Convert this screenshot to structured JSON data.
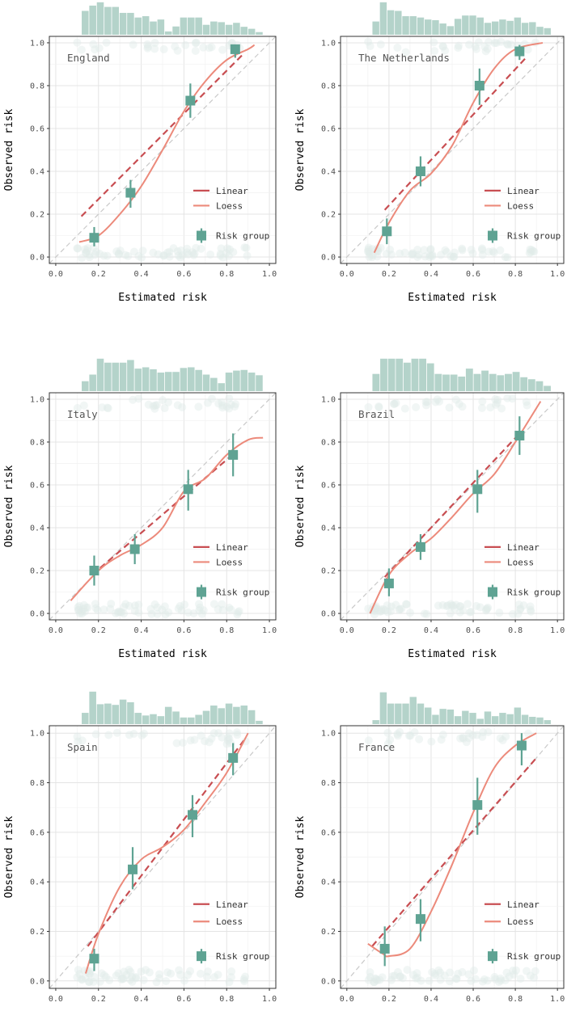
{
  "chart_data": {
    "type": "scatter",
    "x_ticks": [
      "0.0",
      "0.2",
      "0.4",
      "0.6",
      "0.8",
      "1.0"
    ],
    "y_ticks": [
      "0.0",
      "0.2",
      "0.4",
      "0.6",
      "0.8",
      "1.0"
    ],
    "xlim": [
      -0.03,
      1.03
    ],
    "ylim": [
      -0.03,
      1.03
    ],
    "grid": true,
    "legend_placement": "bottom-right",
    "legend": [
      {
        "label": "Linear",
        "kind": "line",
        "color": "#c84e52"
      },
      {
        "label": "Loess",
        "kind": "line",
        "color": "#ec8a7b"
      },
      {
        "label": "Risk group",
        "kind": "point",
        "color": "#5fa393"
      }
    ],
    "colors": {
      "linear": "#c84e52",
      "loess": "#ec8a7b",
      "group": "#5fa393",
      "hist": "#b4d3ca",
      "reference": "#c9c9c9",
      "jitter": "#e1ece8"
    },
    "panels": [
      {
        "title": "England",
        "xlabel": "Estimated risk",
        "ylabel": "Observed risk",
        "hist": [
          0.72,
          0.88,
          0.98,
          0.84,
          0.84,
          0.66,
          0.66,
          0.52,
          0.56,
          0.4,
          0.46,
          0.1,
          0.25,
          0.52,
          0.52,
          0.52,
          0.3,
          0.4,
          0.38,
          0.3,
          0.36,
          0.24,
          0.18,
          0.08
        ],
        "linear": [
          [
            0.12,
            0.19
          ],
          [
            0.88,
            0.95
          ]
        ],
        "loess": [
          [
            0.11,
            0.07
          ],
          [
            0.2,
            0.1
          ],
          [
            0.3,
            0.2
          ],
          [
            0.4,
            0.33
          ],
          [
            0.5,
            0.5
          ],
          [
            0.6,
            0.68
          ],
          [
            0.7,
            0.82
          ],
          [
            0.8,
            0.92
          ],
          [
            0.9,
            0.97
          ],
          [
            0.93,
            0.99
          ]
        ],
        "groups": [
          {
            "x": 0.18,
            "y": 0.09,
            "lo": 0.05,
            "hi": 0.14
          },
          {
            "x": 0.35,
            "y": 0.3,
            "lo": 0.23,
            "hi": 0.36
          },
          {
            "x": 0.63,
            "y": 0.73,
            "lo": 0.65,
            "hi": 0.81
          },
          {
            "x": 0.84,
            "y": 0.97,
            "lo": 0.93,
            "hi": 0.99
          }
        ]
      },
      {
        "title": "The Netherlands",
        "xlabel": "Estimated risk",
        "ylabel": "Observed risk",
        "hist": [
          0.4,
          0.98,
          0.74,
          0.72,
          0.56,
          0.56,
          0.52,
          0.46,
          0.44,
          0.34,
          0.26,
          0.48,
          0.58,
          0.58,
          0.52,
          0.36,
          0.4,
          0.46,
          0.42,
          0.52,
          0.36,
          0.38,
          0.24,
          0.2
        ],
        "linear": [
          [
            0.18,
            0.22
          ],
          [
            0.85,
            0.93
          ]
        ],
        "loess": [
          [
            0.13,
            0.02
          ],
          [
            0.2,
            0.16
          ],
          [
            0.3,
            0.31
          ],
          [
            0.4,
            0.39
          ],
          [
            0.5,
            0.52
          ],
          [
            0.6,
            0.72
          ],
          [
            0.7,
            0.88
          ],
          [
            0.8,
            0.97
          ],
          [
            0.93,
            1.0
          ]
        ],
        "groups": [
          {
            "x": 0.19,
            "y": 0.12,
            "lo": 0.06,
            "hi": 0.18
          },
          {
            "x": 0.35,
            "y": 0.4,
            "lo": 0.33,
            "hi": 0.47
          },
          {
            "x": 0.63,
            "y": 0.8,
            "lo": 0.71,
            "hi": 0.88
          },
          {
            "x": 0.82,
            "y": 0.96,
            "lo": 0.92,
            "hi": 0.99
          }
        ]
      },
      {
        "title": "Italy",
        "xlabel": "Estimated risk",
        "ylabel": "Observed risk",
        "hist": [
          0.3,
          0.5,
          0.98,
          0.86,
          0.86,
          0.86,
          0.94,
          0.68,
          0.72,
          0.66,
          0.56,
          0.58,
          0.58,
          0.7,
          0.72,
          0.64,
          0.5,
          0.4,
          0.24,
          0.56,
          0.62,
          0.64,
          0.56,
          0.48
        ],
        "linear": [
          [
            0.17,
            0.18
          ],
          [
            0.85,
            0.76
          ]
        ],
        "loess": [
          [
            0.07,
            0.06
          ],
          [
            0.2,
            0.2
          ],
          [
            0.3,
            0.27
          ],
          [
            0.4,
            0.32
          ],
          [
            0.5,
            0.4
          ],
          [
            0.6,
            0.57
          ],
          [
            0.7,
            0.63
          ],
          [
            0.8,
            0.74
          ],
          [
            0.9,
            0.81
          ],
          [
            0.97,
            0.82
          ]
        ],
        "groups": [
          {
            "x": 0.18,
            "y": 0.2,
            "lo": 0.13,
            "hi": 0.27
          },
          {
            "x": 0.37,
            "y": 0.3,
            "lo": 0.23,
            "hi": 0.37
          },
          {
            "x": 0.62,
            "y": 0.58,
            "lo": 0.48,
            "hi": 0.67
          },
          {
            "x": 0.83,
            "y": 0.74,
            "lo": 0.64,
            "hi": 0.84
          }
        ]
      },
      {
        "title": "Brazil",
        "xlabel": "Estimated risk",
        "ylabel": "Observed risk",
        "hist": [
          0.52,
          0.98,
          0.98,
          0.98,
          0.86,
          0.98,
          0.98,
          0.84,
          0.52,
          0.5,
          0.5,
          0.44,
          0.68,
          0.52,
          0.62,
          0.52,
          0.48,
          0.52,
          0.58,
          0.42,
          0.36,
          0.3,
          0.16
        ],
        "linear": [
          [
            0.18,
            0.17
          ],
          [
            0.82,
            0.84
          ]
        ],
        "loess": [
          [
            0.11,
            0.0
          ],
          [
            0.2,
            0.18
          ],
          [
            0.3,
            0.28
          ],
          [
            0.4,
            0.35
          ],
          [
            0.5,
            0.45
          ],
          [
            0.6,
            0.56
          ],
          [
            0.7,
            0.65
          ],
          [
            0.8,
            0.8
          ],
          [
            0.92,
            0.99
          ]
        ],
        "groups": [
          {
            "x": 0.2,
            "y": 0.14,
            "lo": 0.08,
            "hi": 0.21
          },
          {
            "x": 0.35,
            "y": 0.31,
            "lo": 0.25,
            "hi": 0.37
          },
          {
            "x": 0.62,
            "y": 0.58,
            "lo": 0.47,
            "hi": 0.67
          },
          {
            "x": 0.82,
            "y": 0.83,
            "lo": 0.74,
            "hi": 0.92
          }
        ]
      },
      {
        "title": "Spain",
        "xlabel": "",
        "ylabel": "Observed risk",
        "hist": [
          0.34,
          0.98,
          0.6,
          0.62,
          0.58,
          0.74,
          0.66,
          0.34,
          0.26,
          0.3,
          0.24,
          0.52,
          0.38,
          0.2,
          0.2,
          0.28,
          0.4,
          0.56,
          0.48,
          0.62,
          0.52,
          0.56,
          0.42,
          0.1
        ],
        "linear": [
          [
            0.15,
            0.14
          ],
          [
            0.88,
            0.97
          ]
        ],
        "loess": [
          [
            0.14,
            0.03
          ],
          [
            0.2,
            0.19
          ],
          [
            0.3,
            0.38
          ],
          [
            0.4,
            0.49
          ],
          [
            0.5,
            0.54
          ],
          [
            0.6,
            0.61
          ],
          [
            0.7,
            0.72
          ],
          [
            0.8,
            0.84
          ],
          [
            0.9,
            1.0
          ]
        ],
        "groups": [
          {
            "x": 0.18,
            "y": 0.09,
            "lo": 0.04,
            "hi": 0.13
          },
          {
            "x": 0.36,
            "y": 0.45,
            "lo": 0.37,
            "hi": 0.54
          },
          {
            "x": 0.64,
            "y": 0.67,
            "lo": 0.58,
            "hi": 0.75
          },
          {
            "x": 0.83,
            "y": 0.9,
            "lo": 0.83,
            "hi": 0.96
          }
        ]
      },
      {
        "title": "France",
        "xlabel": "",
        "ylabel": "Observed risk",
        "hist": [
          0.12,
          0.96,
          0.62,
          0.62,
          0.62,
          0.82,
          0.62,
          0.5,
          0.28,
          0.46,
          0.44,
          0.24,
          0.4,
          0.34,
          0.16,
          0.38,
          0.24,
          0.34,
          0.3,
          0.5,
          0.28,
          0.22,
          0.2,
          0.12
        ],
        "linear": [
          [
            0.12,
            0.14
          ],
          [
            0.9,
            0.9
          ]
        ],
        "loess": [
          [
            0.1,
            0.15
          ],
          [
            0.17,
            0.11
          ],
          [
            0.2,
            0.1
          ],
          [
            0.3,
            0.13
          ],
          [
            0.4,
            0.28
          ],
          [
            0.5,
            0.47
          ],
          [
            0.6,
            0.68
          ],
          [
            0.7,
            0.86
          ],
          [
            0.8,
            0.95
          ],
          [
            0.9,
            1.0
          ]
        ],
        "groups": [
          {
            "x": 0.18,
            "y": 0.13,
            "lo": 0.06,
            "hi": 0.22
          },
          {
            "x": 0.35,
            "y": 0.25,
            "lo": 0.16,
            "hi": 0.33
          },
          {
            "x": 0.62,
            "y": 0.71,
            "lo": 0.59,
            "hi": 0.82
          },
          {
            "x": 0.83,
            "y": 0.95,
            "lo": 0.87,
            "hi": 1.0
          }
        ]
      }
    ]
  }
}
